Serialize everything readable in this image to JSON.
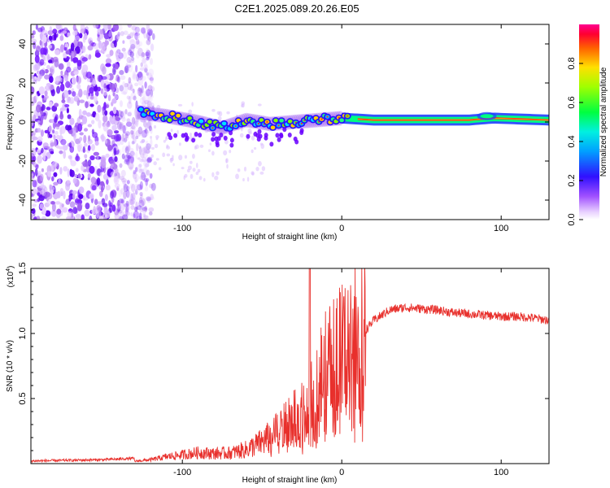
{
  "title": "C2E1.2025.089.20.26.E05",
  "chart_data": [
    {
      "type": "heatmap",
      "name": "spectrogram",
      "xlabel": "Height of straight line (km)",
      "ylabel": "Frequency (Hz)",
      "xlim": [
        -195,
        130
      ],
      "ylim": [
        -50,
        50
      ],
      "xticks": [
        -100,
        0,
        100
      ],
      "yticks": [
        -40,
        -20,
        0,
        20,
        40
      ],
      "colorbar": {
        "label": "Normalized spectral amplitude",
        "range": [
          0,
          1
        ],
        "ticks": [
          0.0,
          0.2,
          0.4,
          0.6,
          0.8
        ],
        "tick_labels": [
          "0.0",
          "0.2",
          "0.4",
          "0.6",
          "0.8"
        ]
      },
      "signal_band": {
        "description_points_x": [
          -128,
          -110,
          -90,
          -75,
          -60,
          -45,
          -30,
          -15,
          0,
          20,
          50,
          80,
          95,
          130
        ],
        "center_freq_hz": [
          5,
          3,
          0,
          -3,
          1,
          -1,
          0,
          1,
          2,
          1,
          1,
          1,
          2,
          1
        ]
      }
    },
    {
      "type": "line",
      "name": "snr",
      "xlabel": "Height of straight line (km)",
      "ylabel": "SNR (10 * v/v)",
      "scale_label_base": "(x10",
      "scale_label_exp": "4",
      "scale_label_close": ")",
      "xlim": [
        -195,
        130
      ],
      "ylim": [
        0,
        1.5
      ],
      "xticks": [
        -100,
        0,
        100
      ],
      "yticks": [
        0.5,
        1.0,
        1.5
      ],
      "ytick_labels": [
        "0.5",
        "1.0",
        "1.5"
      ],
      "color": "#e8302c",
      "envelope": {
        "x": [
          -195,
          -150,
          -130,
          -120,
          -110,
          -100,
          -90,
          -80,
          -70,
          -60,
          -50,
          -40,
          -30,
          -25,
          -20,
          -15,
          -10,
          -5,
          0,
          10,
          20,
          30,
          40,
          50,
          60,
          70,
          80,
          90,
          100,
          110,
          120,
          130
        ],
        "y": [
          0.02,
          0.03,
          0.04,
          0.06,
          0.1,
          0.12,
          0.14,
          0.12,
          0.12,
          0.15,
          0.22,
          0.3,
          0.4,
          0.45,
          0.55,
          0.7,
          0.75,
          0.8,
          0.85,
          0.95,
          1.1,
          1.18,
          1.2,
          1.19,
          1.18,
          1.16,
          1.15,
          1.14,
          1.13,
          1.13,
          1.12,
          1.1
        ]
      },
      "peak": {
        "x": -20,
        "y": 1.5
      }
    }
  ],
  "colors": {
    "spectro_low": "#b06cf0",
    "spectro_mid": "#6a00ff",
    "line": "#e8302c"
  }
}
